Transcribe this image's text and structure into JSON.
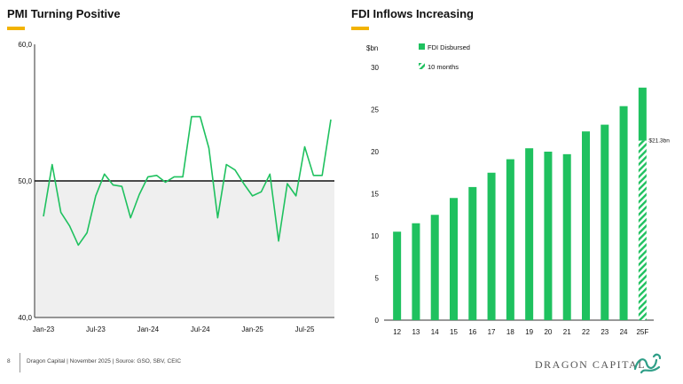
{
  "left_panel": {
    "title": "PMI Turning Positive"
  },
  "right_panel": {
    "title": "FDI Inflows Increasing"
  },
  "footer": {
    "page_number": "8",
    "source": "Dragon Capital | November 2025 | Source: GSO, SBV, CEIC"
  },
  "brand": {
    "name": "DRAGON CAPITAL"
  },
  "colors": {
    "accent": "#f2b300",
    "green": "#1fc15f",
    "shade": "#efefef",
    "brand_teal": "#2e9e87"
  },
  "chart_data": [
    {
      "type": "line",
      "title": "PMI Turning Positive",
      "ylim": [
        40,
        60
      ],
      "y_ticks": [
        "40,0",
        "50,0",
        "60,0"
      ],
      "reference_line": 50,
      "shaded_below": 50,
      "x_labels": [
        "Jan-23",
        "Jul-23",
        "Jan-24",
        "Jul-24",
        "Jan-25",
        "Jul-25"
      ],
      "series": [
        {
          "name": "PMI",
          "values": [
            47.4,
            51.2,
            47.7,
            46.7,
            45.3,
            46.2,
            48.9,
            50.5,
            49.7,
            49.6,
            47.3,
            49.0,
            50.3,
            50.4,
            49.9,
            50.3,
            50.3,
            54.7,
            54.7,
            52.4,
            47.3,
            51.2,
            50.8,
            49.8,
            48.9,
            49.2,
            50.5,
            45.6,
            49.8,
            48.9,
            52.5,
            50.4,
            50.4,
            54.5
          ]
        }
      ]
    },
    {
      "type": "bar",
      "title": "FDI Inflows Increasing",
      "ylabel": "$bn",
      "ylim": [
        0,
        30
      ],
      "y_ticks": [
        "0",
        "5",
        "10",
        "15",
        "20",
        "25",
        "30"
      ],
      "categories": [
        "12",
        "13",
        "14",
        "15",
        "16",
        "17",
        "18",
        "19",
        "20",
        "21",
        "22",
        "23",
        "24",
        "25F"
      ],
      "series": [
        {
          "name": "FDI Disbursed",
          "values": [
            10.5,
            11.5,
            12.5,
            14.5,
            15.8,
            17.5,
            19.1,
            20.4,
            20.0,
            19.7,
            22.4,
            23.2,
            25.4,
            21.3
          ]
        },
        {
          "name": "10 months",
          "values": [
            0,
            0,
            0,
            0,
            0,
            0,
            0,
            0,
            0,
            0,
            0,
            0,
            0,
            27.6
          ]
        }
      ],
      "annotation": "$21.3bn"
    }
  ]
}
